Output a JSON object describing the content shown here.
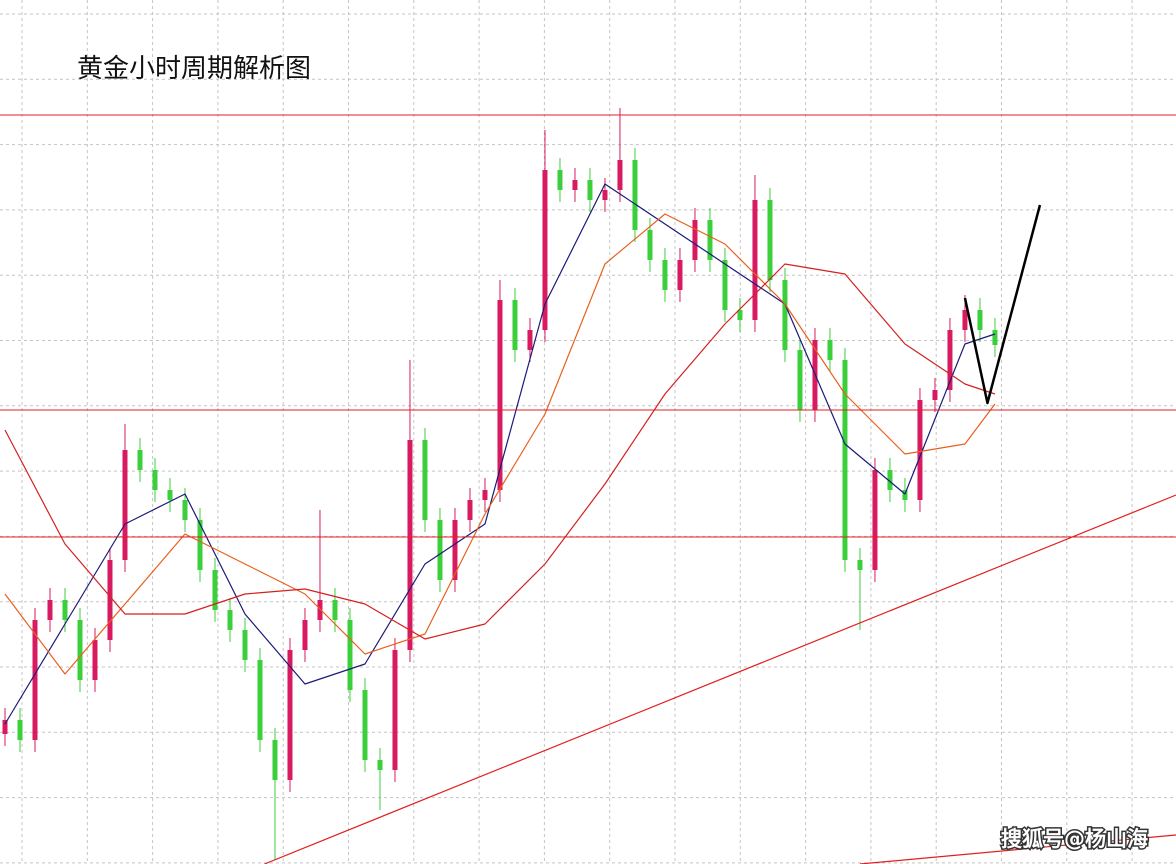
{
  "chart_data": {
    "type": "candlestick",
    "title": "黄金小时周期解析图",
    "watermark": "搜狐号@杨山海",
    "xlim": [
      -0.333,
      78.07
    ],
    "ylim": [
      0,
      864
    ],
    "grid": true,
    "up_color": "#d81b60",
    "down_color": "#3ccf3c",
    "open": [
      130,
      144,
      124,
      244,
      264,
      244,
      184,
      224,
      304,
      414,
      394,
      374,
      364,
      344,
      294,
      254,
      234,
      204,
      124,
      84,
      214,
      244,
      264,
      244,
      174,
      104,
      94,
      214,
      424,
      344,
      284,
      344,
      364,
      374,
      564,
      514,
      534,
      694,
      674,
      684,
      664,
      674,
      704,
      634,
      604,
      574,
      604,
      644,
      604,
      554,
      544,
      664,
      584,
      514,
      454,
      524,
      504,
      304,
      294,
      394,
      374,
      364,
      464,
      474,
      534,
      554,
      534
    ],
    "high": [
      156,
      156,
      256,
      276,
      276,
      256,
      236,
      316,
      440,
      426,
      406,
      386,
      376,
      356,
      306,
      266,
      246,
      216,
      136,
      226,
      256,
      354,
      276,
      256,
      186,
      116,
      226,
      504,
      436,
      356,
      356,
      376,
      386,
      584,
      576,
      546,
      734,
      706,
      696,
      696,
      686,
      756,
      716,
      646,
      616,
      616,
      656,
      656,
      616,
      566,
      689,
      676,
      596,
      526,
      536,
      536,
      516,
      316,
      406,
      406,
      386,
      476,
      486,
      546,
      569,
      566,
      546
    ],
    "low": [
      118,
      112,
      112,
      232,
      232,
      172,
      172,
      212,
      292,
      382,
      362,
      352,
      332,
      282,
      242,
      222,
      192,
      112,
      4,
      72,
      202,
      232,
      232,
      162,
      92,
      54,
      82,
      202,
      332,
      272,
      272,
      332,
      352,
      362,
      502,
      502,
      522,
      662,
      662,
      652,
      652,
      662,
      622,
      592,
      562,
      562,
      592,
      592,
      542,
      532,
      532,
      572,
      502,
      442,
      442,
      492,
      292,
      234,
      282,
      362,
      352,
      352,
      452,
      462,
      522,
      522,
      507
    ],
    "close": [
      144,
      124,
      244,
      264,
      244,
      184,
      224,
      304,
      414,
      394,
      374,
      364,
      344,
      294,
      254,
      234,
      204,
      124,
      84,
      214,
      244,
      264,
      244,
      174,
      104,
      94,
      214,
      424,
      344,
      284,
      344,
      364,
      374,
      564,
      514,
      534,
      694,
      674,
      684,
      664,
      674,
      704,
      634,
      604,
      574,
      604,
      644,
      604,
      554,
      544,
      664,
      584,
      514,
      454,
      524,
      504,
      304,
      294,
      394,
      374,
      364,
      464,
      474,
      534,
      554,
      534,
      519
    ],
    "series": [
      {
        "color": "#1a1a7a",
        "x": [
          0,
          4,
          8,
          12,
          16,
          20,
          24,
          28,
          32,
          36,
          40,
          44,
          48,
          52,
          56,
          60,
          64,
          66
        ],
        "values": [
          140,
          240,
          340,
          370,
          250,
          180,
          200,
          300,
          340,
          560,
          680,
          640,
          600,
          560,
          420,
          370,
          520,
          530
        ]
      },
      {
        "color": "#e8601c",
        "x": [
          0,
          4,
          8,
          12,
          16,
          20,
          24,
          28,
          32,
          36,
          40,
          44,
          48,
          52,
          56,
          60,
          64,
          66
        ],
        "values": [
          270,
          190,
          260,
          330,
          300,
          270,
          210,
          230,
          350,
          450,
          600,
          650,
          620,
          560,
          470,
          410,
          420,
          460
        ]
      },
      {
        "color": "#d42020",
        "x": [
          0,
          4,
          8,
          12,
          16,
          20,
          24,
          28,
          32,
          36,
          40,
          44,
          48,
          52,
          56,
          60,
          64,
          66
        ],
        "values": [
          434,
          320,
          250,
          250,
          270,
          275,
          260,
          225,
          240,
          300,
          380,
          470,
          540,
          600,
          590,
          520,
          480,
          470
        ]
      }
    ],
    "levels": [
      749,
      454,
      327
    ],
    "level_color": "#e02020",
    "trendlines": [
      {
        "color": "#e02020",
        "x": [
          17.3,
          78.07
        ],
        "values": [
          0,
          369
        ]
      },
      {
        "color": "#e02020",
        "x": [
          57,
          78.07
        ],
        "values": [
          0,
          29
        ]
      }
    ],
    "projection": {
      "color": "#000000",
      "x": [
        64,
        65.5,
        69
      ],
      "values": [
        566,
        461,
        659
      ]
    }
  }
}
